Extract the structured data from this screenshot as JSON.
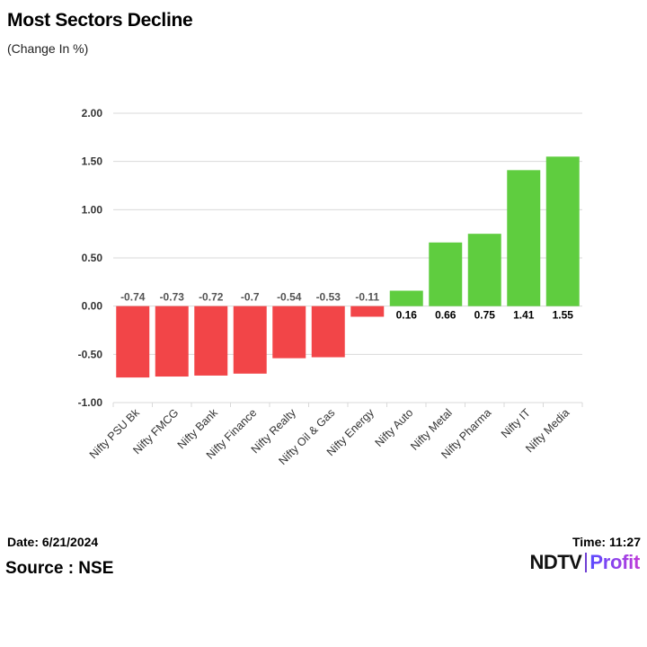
{
  "title": "Most Sectors Decline",
  "subtitle": "(Change In %)",
  "footer": {
    "date": "Date: 6/21/2024",
    "time": "Time: 11:27",
    "source": "Source : NSE"
  },
  "logo": {
    "brand": "NDTV",
    "product": "Profit"
  },
  "colors": {
    "negative": "#f24548",
    "positive": "#5fcd3f",
    "grid": "#d9d9d9",
    "axis_text": "#333333",
    "label_neg": "#555555",
    "label_pos": "#000000"
  },
  "chart_data": {
    "type": "bar",
    "title": "Most Sectors Decline",
    "ylabel": "Change In %",
    "xlabel": "",
    "categories": [
      "Nifty PSU Bk",
      "Nifty FMCG",
      "Nifty Bank",
      "Nifty Finance",
      "Nifty Realty",
      "Nifty Oil & Gas",
      "Nifty Energy",
      "Nifty Auto",
      "Nifty Metal",
      "Nifty Pharma",
      "Nifty IT",
      "Nifty Media"
    ],
    "values": [
      -0.74,
      -0.73,
      -0.72,
      -0.7,
      -0.54,
      -0.53,
      -0.11,
      0.16,
      0.66,
      0.75,
      1.41,
      1.55
    ],
    "data_labels": [
      "-0.74",
      "-0.73",
      "-0.72",
      "-0.7",
      "-0.54",
      "-0.53",
      "-0.11",
      "0.16",
      "0.66",
      "0.75",
      "1.41",
      "1.55"
    ],
    "ylim": [
      -1.0,
      2.0
    ],
    "yticks": [
      2.0,
      1.5,
      1.0,
      0.5,
      0.0,
      -0.5,
      -1.0
    ],
    "ytick_labels": [
      "2.00",
      "1.50",
      "1.00",
      "0.50",
      "0.00",
      "-0.50",
      "-1.00"
    ],
    "grid": true,
    "legend": "none"
  }
}
